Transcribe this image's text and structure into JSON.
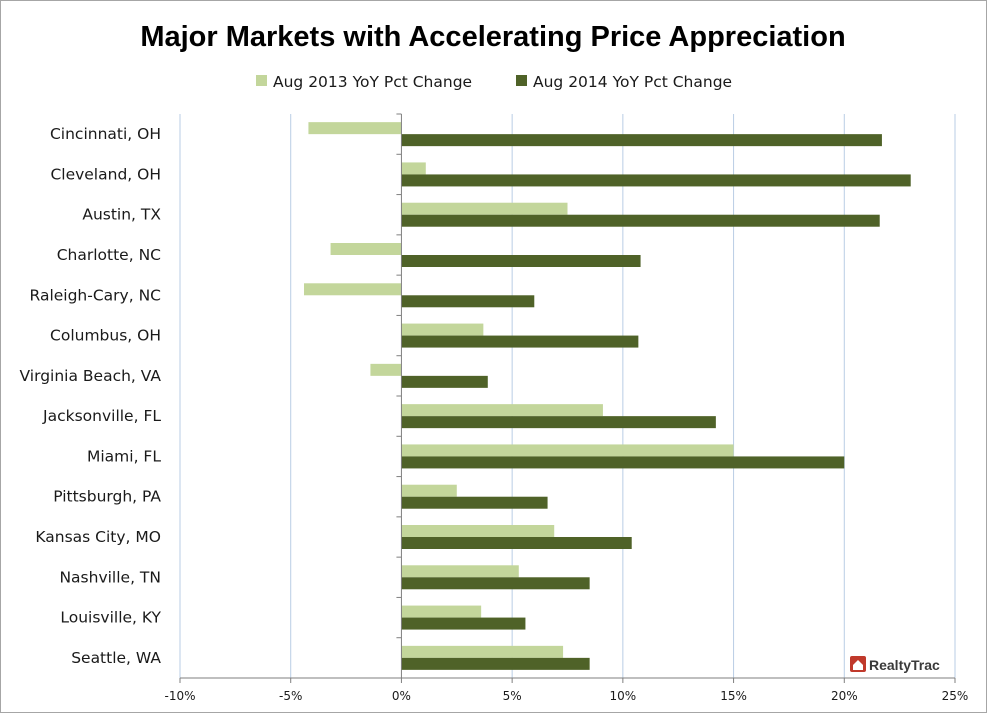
{
  "colors": {
    "series_2013": "#c3d69b",
    "series_2014": "#4f6228",
    "gridline": "#b9cde5",
    "axis": "#7f7f7f",
    "brand_red": "#c0392b"
  },
  "brand": {
    "name": "RealtyTrac"
  },
  "chart_data": {
    "type": "bar",
    "orientation": "horizontal",
    "title": "Major Markets with Accelerating Price Appreciation",
    "xlabel": "",
    "ylabel": "",
    "xlim": [
      -10,
      25
    ],
    "x_ticks": [
      -10,
      -5,
      0,
      5,
      10,
      15,
      20,
      25
    ],
    "x_tick_labels": [
      "-10%",
      "-5%",
      "0%",
      "5%",
      "10%",
      "15%",
      "20%",
      "25%"
    ],
    "unit": "%",
    "grid": "vertical",
    "legend_position": "top",
    "categories": [
      "Cincinnati, OH",
      "Cleveland, OH",
      "Austin, TX",
      "Charlotte, NC",
      "Raleigh-Cary, NC",
      "Columbus, OH",
      "Virginia Beach, VA",
      "Jacksonville, FL",
      "Miami, FL",
      "Pittsburgh, PA",
      "Kansas City, MO",
      "Nashville, TN",
      "Louisville, KY",
      "Seattle, WA"
    ],
    "series": [
      {
        "name": "Aug 2013 YoY Pct Change",
        "color": "#c3d69b",
        "values": [
          -4.2,
          1.1,
          7.5,
          -3.2,
          -4.4,
          3.7,
          -1.4,
          9.1,
          15.0,
          2.5,
          6.9,
          5.3,
          3.6,
          7.3
        ]
      },
      {
        "name": "Aug 2014 YoY Pct Change",
        "color": "#4f6228",
        "values": [
          21.7,
          23.0,
          21.6,
          10.8,
          6.0,
          10.7,
          3.9,
          14.2,
          20.0,
          6.6,
          10.4,
          8.5,
          5.6,
          8.5
        ]
      }
    ]
  }
}
